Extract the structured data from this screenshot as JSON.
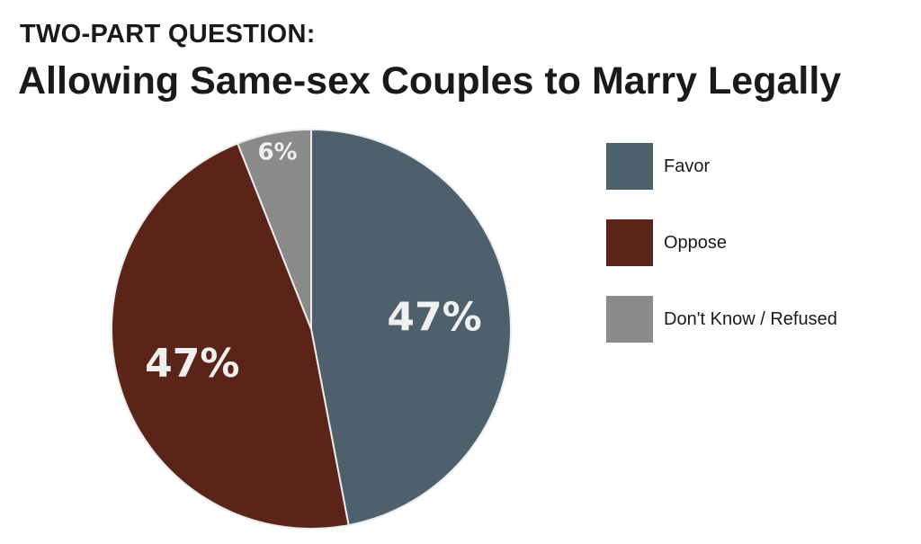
{
  "header": {
    "subtitle": "TWO-PART QUESTION:",
    "title": "Allowing Same-sex Couples to Marry Legally"
  },
  "chart_data": {
    "type": "pie",
    "title": "Allowing Same-sex Couples to Marry Legally",
    "subtitle": "TWO-PART QUESTION:",
    "slices": [
      {
        "label": "Favor",
        "value": 47,
        "display": "47%",
        "color": "#4d606c"
      },
      {
        "label": "Oppose",
        "value": 47,
        "display": "47%",
        "color": "#5b2418"
      },
      {
        "label": "Don't Know / Refused",
        "value": 6,
        "display": "6%",
        "color": "#8a8a8a"
      }
    ],
    "legend_position": "right"
  }
}
